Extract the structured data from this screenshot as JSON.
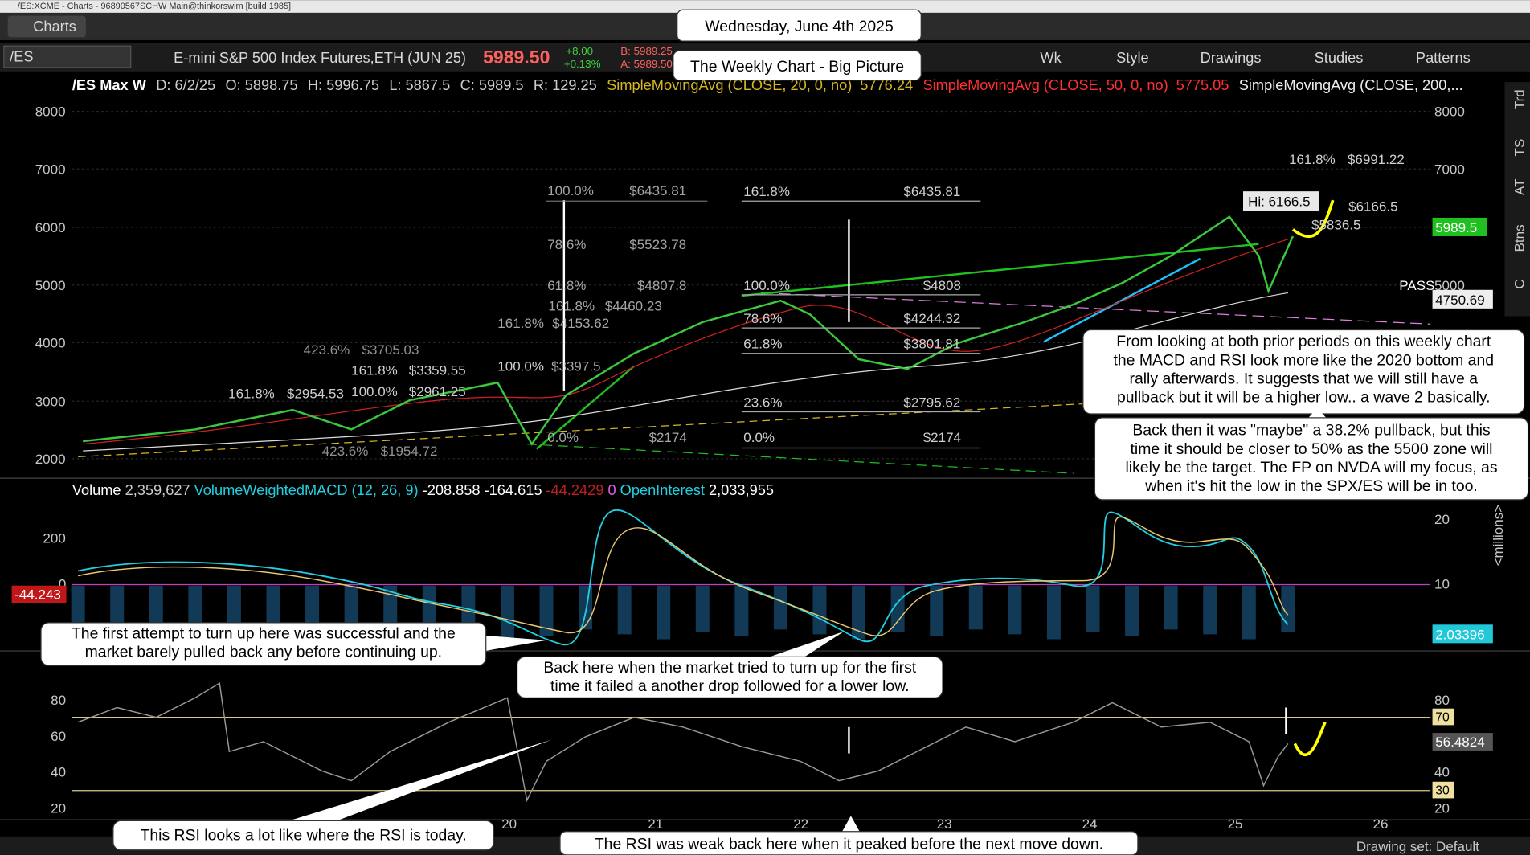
{
  "window_title": "/ES:XCME - Charts - 96890567SCHW Main@thinkorswim [build 1985]",
  "tab": "Charts",
  "toolbar": {
    "symbol": "/ES",
    "description": "E-mini S&P 500 Index Futures,ETH (JUN 25)",
    "last": "5989.50",
    "change": "+8.00",
    "change_pct": "+0.13%",
    "bid": "B: 5989.25",
    "ask": "A: 5989.50",
    "period": "Wk",
    "buttons": [
      "Style",
      "Drawings",
      "Studies",
      "Patterns"
    ]
  },
  "study_line": {
    "symbol": "/ES Max W",
    "items": [
      "D: 6/2/25",
      "O: 5898.75",
      "H: 5996.75",
      "L: 5867.5",
      "C: 5989.5",
      "R: 129.25"
    ],
    "sma20": "SimpleMovingAvg (CLOSE, 20, 0, no)",
    "sma20_value": "5776.24",
    "sma50": "SimpleMovingAvg (CLOSE, 50, 0, no)",
    "sma50_value": "5775.05",
    "sma200": "SimpleMovingAvg (CLOSE, 200,..."
  },
  "headline": [
    "Wednesday, June 4th 2025",
    "The Weekly Chart - Big Picture"
  ],
  "price_axis": [
    "8000",
    "7000",
    "6000",
    "5000",
    "4000",
    "3000",
    "2000"
  ],
  "price_tags": {
    "last": "5989.5",
    "other": "4750.69",
    "pass": "PASS"
  },
  "fib_center": [
    [
      "161.8%",
      "$6435.81"
    ],
    [
      "100.0%",
      "$4808"
    ],
    [
      "78.6%",
      "$4244.32"
    ],
    [
      "61.8%",
      "$3801.81"
    ],
    [
      "23.6%",
      "$2795.62"
    ],
    [
      "0.0%",
      "$2174"
    ]
  ],
  "fib_left": [
    [
      "100.0%",
      "$6435.81"
    ],
    [
      "78.6%",
      "$5523.78"
    ],
    [
      "61.8%",
      "$4807.8"
    ],
    [
      "161.8%",
      "$4460.23"
    ],
    [
      "161.8%",
      "$4153.62"
    ],
    [
      "0.0%",
      "$2174"
    ]
  ],
  "fib_small": [
    [
      "161.8%",
      "$2954.53"
    ],
    [
      "161.8%",
      "$3359.55"
    ],
    [
      "100.0%",
      "$2961.25"
    ],
    [
      "423.6%",
      "$3705.03"
    ],
    [
      "423.6%",
      "$1954.72"
    ],
    [
      "100.0%",
      "$3397.5"
    ],
    [
      "161.8%",
      "$6991.22"
    ]
  ],
  "high_label": "Hi: 6166.5",
  "right_labels": [
    "$6166.5",
    "$5836.5"
  ],
  "volume_line": {
    "volume": "Volume",
    "volume_value": "2,359,627",
    "macd": "VolumeWeightedMACD (12, 26, 9)",
    "v1": "-208.858",
    "v2": "-164.615",
    "v3": "-44.2429",
    "v4": "0",
    "oi": "OpenInterest",
    "oi_value": "2,033,955"
  },
  "macd_axis": [
    "200",
    "0"
  ],
  "macd_tag": "-44.243",
  "oi_axis": [
    "20",
    "10"
  ],
  "oi_tag": "2.03396",
  "oi_unit": "<millions>",
  "rsi_axis": [
    "80",
    "60",
    "40",
    "20"
  ],
  "rsi_right": [
    "80",
    "70",
    "56.4824",
    "40",
    "30",
    "20"
  ],
  "x_axis": [
    "20",
    "21",
    "22",
    "23",
    "24",
    "25",
    "26"
  ],
  "side_tabs": [
    "Trd",
    "TS",
    "AT",
    "Btns",
    "C"
  ],
  "annotations": [
    [
      "From looking at both prior periods on this weekly chart",
      "the MACD and RSI look more like the 2020 bottom and",
      "rally afterwards.  It suggests that we will still have a",
      "pullback but it will be a higher low.. a wave 2 basically."
    ],
    [
      "Back then it was \"maybe\" a 38.2% pullback, but this",
      "time it should be closer to 50% as the 5500 zone will",
      "likely be the target.  The FP on NVDA will my focus, as",
      "when it's hit the low in the SPX/ES will be in too."
    ],
    [
      "The first attempt to turn up here was successful and the",
      "market barely pulled back any before continuing up."
    ],
    [
      "Back here when the market tried to turn up for the first",
      "time it failed a another drop followed for a lower low."
    ],
    [
      "This RSI looks a lot like where the RSI is today."
    ],
    [
      "The RSI was weak back here when it peaked before the next move down."
    ]
  ],
  "drawing_set": "Drawing set: Default"
}
